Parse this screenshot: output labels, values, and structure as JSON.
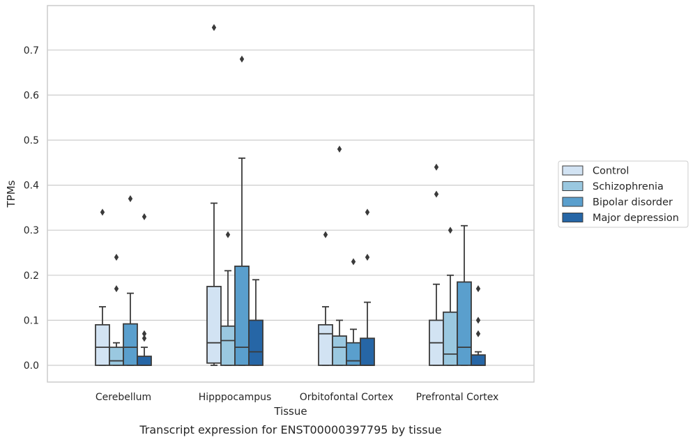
{
  "chart_data": {
    "type": "box",
    "title": "",
    "caption": "Transcript expression for ENST00000397795 by tissue",
    "xlabel": "Tissue",
    "ylabel": "TPMs",
    "ylim": [
      -0.036,
      0.788
    ],
    "yticks": [
      0.0,
      0.1,
      0.2,
      0.3,
      0.4,
      0.5,
      0.6,
      0.7
    ],
    "ytick_labels": [
      "0.0",
      "0.1",
      "0.2",
      "0.3",
      "0.4",
      "0.5",
      "0.6",
      "0.7"
    ],
    "grid": "horizontal",
    "legend_position": "right",
    "categories": [
      "Cerebellum",
      "Hipppocampus",
      "Orbitofontal Cortex",
      "Prefrontal Cortex"
    ],
    "series": [
      {
        "name": "Control",
        "color": "#d2e3f3",
        "boxes": [
          {
            "whisker_low": 0.0,
            "q1": 0.0,
            "median": 0.04,
            "q3": 0.09,
            "whisker_high": 0.13,
            "outliers": [
              0.34
            ]
          },
          {
            "whisker_low": 0.0,
            "q1": 0.005,
            "median": 0.05,
            "q3": 0.175,
            "whisker_high": 0.36,
            "outliers": [
              0.75
            ]
          },
          {
            "whisker_low": 0.0,
            "q1": 0.0,
            "median": 0.07,
            "q3": 0.09,
            "whisker_high": 0.13,
            "outliers": [
              0.29
            ]
          },
          {
            "whisker_low": 0.0,
            "q1": 0.0,
            "median": 0.05,
            "q3": 0.1,
            "whisker_high": 0.18,
            "outliers": [
              0.38,
              0.44
            ]
          }
        ]
      },
      {
        "name": "Schizophrenia",
        "color": "#9ac8e0",
        "boxes": [
          {
            "whisker_low": 0.0,
            "q1": 0.0,
            "median": 0.01,
            "q3": 0.04,
            "whisker_high": 0.05,
            "outliers": [
              0.17,
              0.24
            ]
          },
          {
            "whisker_low": 0.0,
            "q1": 0.0,
            "median": 0.055,
            "q3": 0.087,
            "whisker_high": 0.21,
            "outliers": [
              0.29
            ]
          },
          {
            "whisker_low": 0.0,
            "q1": 0.0,
            "median": 0.04,
            "q3": 0.065,
            "whisker_high": 0.1,
            "outliers": [
              0.48
            ]
          },
          {
            "whisker_low": 0.0,
            "q1": 0.0,
            "median": 0.025,
            "q3": 0.118,
            "whisker_high": 0.2,
            "outliers": [
              0.3
            ]
          }
        ]
      },
      {
        "name": "Bipolar disorder",
        "color": "#5a9fcd",
        "boxes": [
          {
            "whisker_low": 0.0,
            "q1": 0.0,
            "median": 0.04,
            "q3": 0.092,
            "whisker_high": 0.16,
            "outliers": [
              0.37
            ]
          },
          {
            "whisker_low": 0.0,
            "q1": 0.0,
            "median": 0.04,
            "q3": 0.22,
            "whisker_high": 0.46,
            "outliers": [
              0.68
            ]
          },
          {
            "whisker_low": 0.0,
            "q1": 0.0,
            "median": 0.01,
            "q3": 0.05,
            "whisker_high": 0.08,
            "outliers": [
              0.23
            ]
          },
          {
            "whisker_low": 0.0,
            "q1": 0.0,
            "median": 0.04,
            "q3": 0.185,
            "whisker_high": 0.31,
            "outliers": []
          }
        ]
      },
      {
        "name": "Major depression",
        "color": "#2666a6",
        "boxes": [
          {
            "whisker_low": 0.0,
            "q1": 0.0,
            "median": 0.0,
            "q3": 0.02,
            "whisker_high": 0.04,
            "outliers": [
              0.06,
              0.07,
              0.33
            ]
          },
          {
            "whisker_low": 0.0,
            "q1": 0.0,
            "median": 0.03,
            "q3": 0.1,
            "whisker_high": 0.19,
            "outliers": []
          },
          {
            "whisker_low": 0.0,
            "q1": 0.0,
            "median": 0.0,
            "q3": 0.06,
            "whisker_high": 0.14,
            "outliers": [
              0.24,
              0.34
            ]
          },
          {
            "whisker_low": 0.0,
            "q1": 0.0,
            "median": 0.0,
            "q3": 0.023,
            "whisker_high": 0.03,
            "outliers": [
              0.07,
              0.1,
              0.17
            ]
          }
        ]
      }
    ]
  },
  "colors": {
    "grid": "#cccccc",
    "frame": "#cccccc",
    "box_edge": "#3a3a3a",
    "text": "#262626"
  }
}
